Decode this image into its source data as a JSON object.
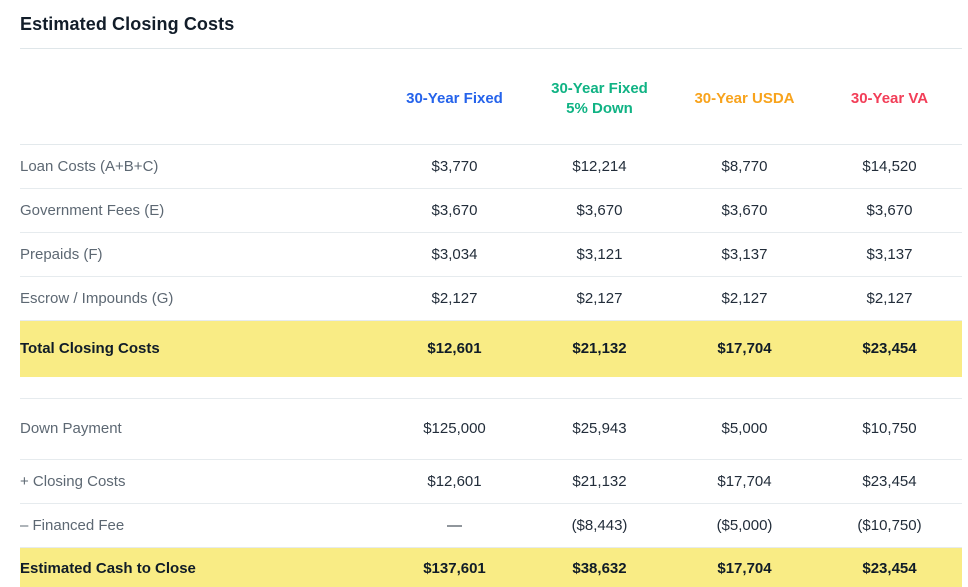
{
  "title": "Estimated Closing Costs",
  "colors": {
    "highlight_yellow": "#f9ec85",
    "divider": "#e6ebee",
    "label_gray": "#5d6873",
    "value_dark": "#222d3a",
    "title_dark": "#121d29"
  },
  "table": {
    "columns": [
      {
        "label": "30-Year Fixed",
        "color": "#2563eb"
      },
      {
        "label": "30-Year Fixed\n5% Down",
        "color": "#10b384"
      },
      {
        "label": "30-Year USDA",
        "color": "#f8a31c"
      },
      {
        "label": "30-Year VA",
        "color": "#f23e58"
      }
    ],
    "sections": [
      {
        "rows": [
          {
            "label": "Loan Costs (A+B+C)",
            "values": [
              "$3,770",
              "$12,214",
              "$8,770",
              "$14,520"
            ]
          },
          {
            "label": "Government Fees (E)",
            "values": [
              "$3,670",
              "$3,670",
              "$3,670",
              "$3,670"
            ]
          },
          {
            "label": "Prepaids (F)",
            "values": [
              "$3,034",
              "$3,121",
              "$3,137",
              "$3,137"
            ]
          },
          {
            "label": "Escrow / Impounds (G)",
            "values": [
              "$2,127",
              "$2,127",
              "$2,127",
              "$2,127"
            ]
          }
        ],
        "total_row": {
          "label": "Total Closing Costs",
          "values": [
            "$12,601",
            "$21,132",
            "$17,704",
            "$23,454"
          ]
        }
      },
      {
        "rows": [
          {
            "label": "Down Payment",
            "values": [
              "$125,000",
              "$25,943",
              "$5,000",
              "$10,750"
            ]
          },
          {
            "label": "+ Closing Costs",
            "values": [
              "$12,601",
              "$21,132",
              "$17,704",
              "$23,454"
            ]
          },
          {
            "label": "– Financed Fee",
            "values": [
              "—",
              "($8,443)",
              "($5,000)",
              "($10,750)"
            ]
          }
        ],
        "total_row": {
          "label": "Estimated Cash to Close",
          "values": [
            "$137,601",
            "$38,632",
            "$17,704",
            "$23,454"
          ]
        }
      }
    ]
  }
}
